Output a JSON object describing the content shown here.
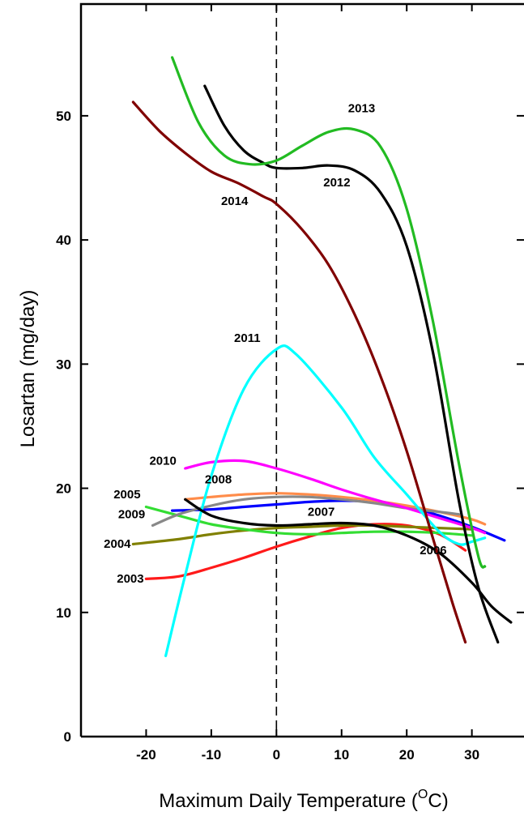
{
  "chart_data": {
    "type": "line",
    "xlabel": "Maximum Daily Temperature (",
    "xlabel_sup": "O",
    "xlabel_end": "C)",
    "ylabel": "Losartan (mg/day)",
    "xlim": [
      -30,
      38
    ],
    "ylim": [
      0,
      59
    ],
    "xticks": [
      -20,
      -10,
      0,
      10,
      20,
      30
    ],
    "yticks": [
      0,
      10,
      20,
      30,
      40,
      50
    ],
    "reference_line": {
      "x": 0,
      "style": "dashed"
    },
    "grid": false,
    "series": [
      {
        "name": "2003",
        "color": "#ff1a1a",
        "points": [
          [
            -20,
            12.7
          ],
          [
            -15,
            12.9
          ],
          [
            -10,
            13.6
          ],
          [
            -5,
            14.4
          ],
          [
            0,
            15.3
          ],
          [
            5,
            16.1
          ],
          [
            10,
            16.8
          ],
          [
            15,
            17.1
          ],
          [
            20,
            17.0
          ],
          [
            25,
            16.3
          ],
          [
            29,
            15.0
          ]
        ]
      },
      {
        "name": "2004",
        "color": "#808000",
        "points": [
          [
            -22,
            15.5
          ],
          [
            -15,
            15.9
          ],
          [
            -10,
            16.3
          ],
          [
            -5,
            16.6
          ],
          [
            0,
            16.8
          ],
          [
            5,
            16.9
          ],
          [
            10,
            17.0
          ],
          [
            15,
            17.0
          ],
          [
            20,
            16.9
          ],
          [
            25,
            16.8
          ],
          [
            30,
            16.7
          ]
        ]
      },
      {
        "name": "2005",
        "color": "#33dd33",
        "points": [
          [
            -20,
            18.5
          ],
          [
            -15,
            17.8
          ],
          [
            -10,
            17.1
          ],
          [
            -5,
            16.7
          ],
          [
            0,
            16.4
          ],
          [
            5,
            16.3
          ],
          [
            10,
            16.4
          ],
          [
            15,
            16.5
          ],
          [
            20,
            16.5
          ],
          [
            25,
            16.4
          ],
          [
            30,
            16.2
          ]
        ]
      },
      {
        "name": "2007",
        "color": "#0000ff",
        "points": [
          [
            -16,
            18.2
          ],
          [
            -10,
            18.3
          ],
          [
            -5,
            18.5
          ],
          [
            0,
            18.7
          ],
          [
            5,
            18.9
          ],
          [
            10,
            19.0
          ],
          [
            15,
            18.9
          ],
          [
            20,
            18.5
          ],
          [
            25,
            17.8
          ],
          [
            30,
            16.9
          ],
          [
            35,
            15.8
          ]
        ]
      },
      {
        "name": "2008",
        "color": "#ff8c4a",
        "points": [
          [
            -14,
            19.1
          ],
          [
            -10,
            19.3
          ],
          [
            -5,
            19.5
          ],
          [
            0,
            19.6
          ],
          [
            5,
            19.5
          ],
          [
            10,
            19.3
          ],
          [
            15,
            19.0
          ],
          [
            20,
            18.6
          ],
          [
            25,
            18.1
          ],
          [
            30,
            17.5
          ],
          [
            32,
            17.1
          ]
        ]
      },
      {
        "name": "2009",
        "color": "#888888",
        "points": [
          [
            -19,
            17.0
          ],
          [
            -15,
            17.9
          ],
          [
            -10,
            18.6
          ],
          [
            -5,
            19.1
          ],
          [
            0,
            19.3
          ],
          [
            5,
            19.3
          ],
          [
            10,
            19.1
          ],
          [
            15,
            18.8
          ],
          [
            20,
            18.4
          ],
          [
            25,
            18.1
          ],
          [
            28,
            17.9
          ]
        ]
      },
      {
        "name": "2010",
        "color": "#ff00ff",
        "points": [
          [
            -14,
            21.6
          ],
          [
            -10,
            22.1
          ],
          [
            -5,
            22.2
          ],
          [
            0,
            21.6
          ],
          [
            5,
            20.8
          ],
          [
            10,
            19.9
          ],
          [
            15,
            19.1
          ],
          [
            20,
            18.4
          ],
          [
            25,
            17.6
          ],
          [
            30,
            16.8
          ],
          [
            32,
            16.4
          ]
        ]
      },
      {
        "name": "2011",
        "color": "#00ffff",
        "points": [
          [
            -17,
            6.5
          ],
          [
            -14,
            13.0
          ],
          [
            -10,
            21.0
          ],
          [
            -5,
            28.0
          ],
          [
            0,
            31.2
          ],
          [
            3,
            30.8
          ],
          [
            10,
            26.5
          ],
          [
            15,
            22.5
          ],
          [
            20,
            19.5
          ],
          [
            25,
            16.5
          ],
          [
            28,
            15.5
          ],
          [
            30,
            15.7
          ],
          [
            32,
            16.0
          ]
        ]
      },
      {
        "name": "2006",
        "color": "#000000",
        "points": [
          [
            -14,
            19.1
          ],
          [
            -10,
            17.8
          ],
          [
            -5,
            17.2
          ],
          [
            0,
            17.0
          ],
          [
            5,
            17.1
          ],
          [
            10,
            17.2
          ],
          [
            15,
            17.0
          ],
          [
            20,
            16.2
          ],
          [
            25,
            14.8
          ],
          [
            30,
            12.4
          ],
          [
            33,
            10.5
          ],
          [
            36,
            9.2
          ]
        ]
      },
      {
        "name": "2012",
        "color": "#000000",
        "points": [
          [
            -11,
            52.4
          ],
          [
            -8,
            49.2
          ],
          [
            -5,
            47.2
          ],
          [
            -2,
            46.2
          ],
          [
            0,
            45.8
          ],
          [
            4,
            45.8
          ],
          [
            8,
            46.0
          ],
          [
            12,
            45.6
          ],
          [
            16,
            43.8
          ],
          [
            20,
            39.5
          ],
          [
            24,
            31.0
          ],
          [
            28,
            19.0
          ],
          [
            31,
            12.0
          ],
          [
            34,
            7.6
          ]
        ]
      },
      {
        "name": "2013",
        "color": "#22bb22",
        "points": [
          [
            -16,
            54.7
          ],
          [
            -12,
            49.5
          ],
          [
            -8,
            46.8
          ],
          [
            -4,
            46.1
          ],
          [
            0,
            46.4
          ],
          [
            4,
            47.6
          ],
          [
            8,
            48.7
          ],
          [
            12,
            48.9
          ],
          [
            16,
            47.5
          ],
          [
            20,
            42.5
          ],
          [
            24,
            33.5
          ],
          [
            28,
            22.0
          ],
          [
            31,
            14.5
          ],
          [
            32,
            13.7
          ]
        ]
      },
      {
        "name": "2014",
        "color": "#800000",
        "points": [
          [
            -22,
            51.1
          ],
          [
            -18,
            48.8
          ],
          [
            -14,
            47.0
          ],
          [
            -10,
            45.5
          ],
          [
            -6,
            44.6
          ],
          [
            -2,
            43.5
          ],
          [
            0,
            42.9
          ],
          [
            4,
            40.8
          ],
          [
            8,
            38.0
          ],
          [
            12,
            34.0
          ],
          [
            16,
            29.0
          ],
          [
            20,
            23.0
          ],
          [
            24,
            16.0
          ],
          [
            27,
            10.8
          ],
          [
            29,
            7.6
          ]
        ]
      }
    ],
    "labels": [
      {
        "text": "2003",
        "x": -24.5,
        "y": 12.4
      },
      {
        "text": "2004",
        "x": -26.5,
        "y": 15.2
      },
      {
        "text": "2005",
        "x": -25,
        "y": 19.2
      },
      {
        "text": "2006",
        "x": 22,
        "y": 14.7
      },
      {
        "text": "2007",
        "x": 4.8,
        "y": 17.8
      },
      {
        "text": "2008",
        "x": -11,
        "y": 20.4
      },
      {
        "text": "2009",
        "x": -24.3,
        "y": 17.6
      },
      {
        "text": "2010",
        "x": -19.5,
        "y": 21.9
      },
      {
        "text": "2011",
        "x": -6.5,
        "y": 31.8
      },
      {
        "text": "2012",
        "x": 7.2,
        "y": 44.3
      },
      {
        "text": "2013",
        "x": 11,
        "y": 50.3
      },
      {
        "text": "2014",
        "x": -8.5,
        "y": 42.8
      }
    ]
  }
}
